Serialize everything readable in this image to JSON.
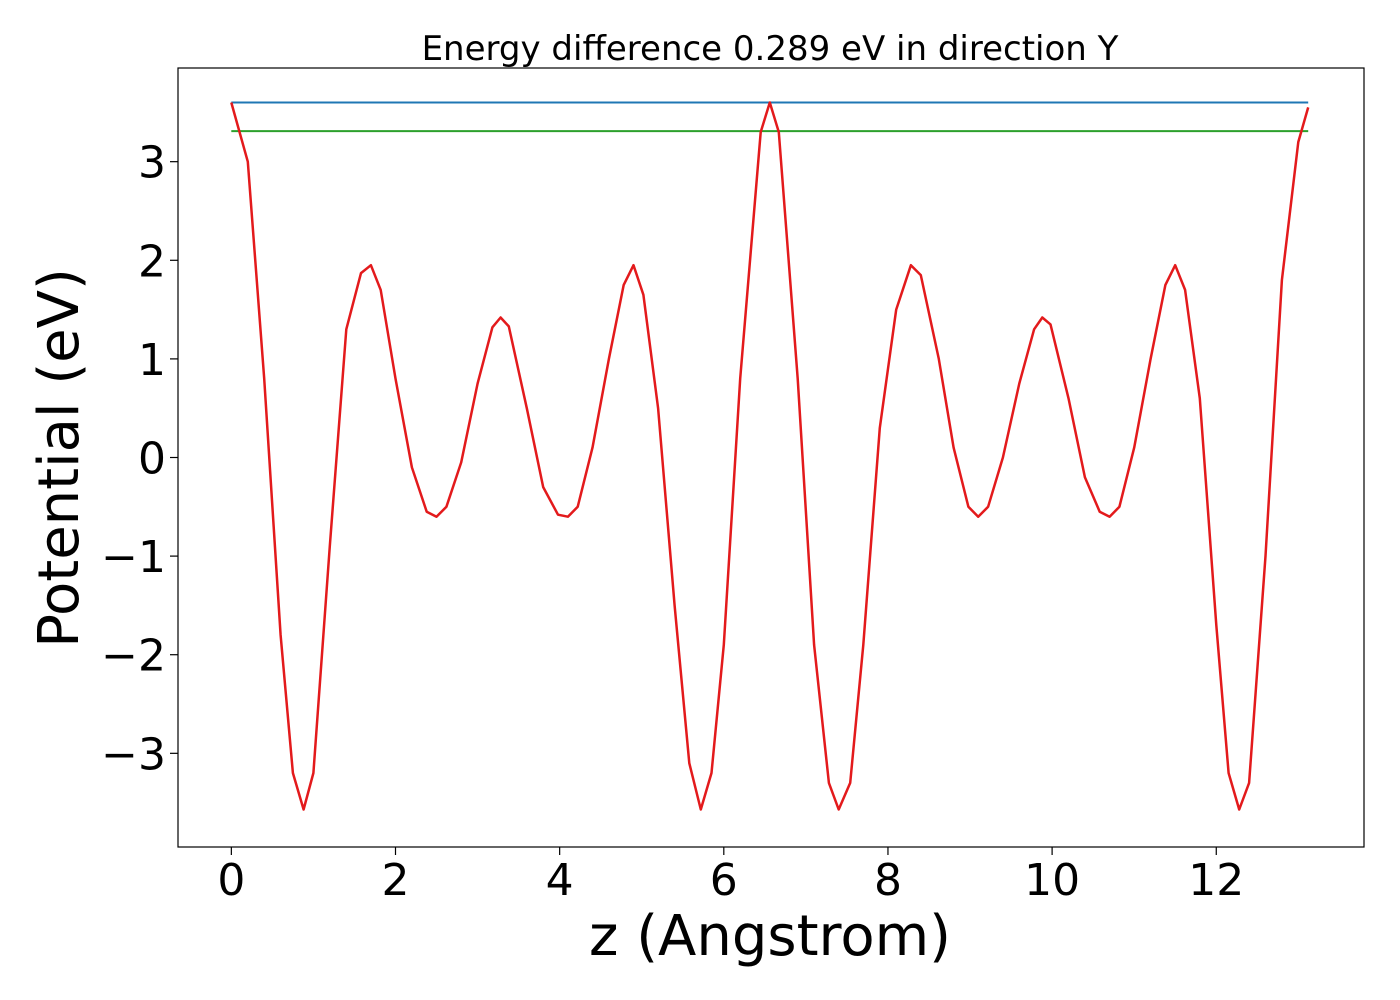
{
  "chart_data": {
    "type": "line",
    "title": "Energy difference 0.289 eV in direction Y",
    "xlabel": "z (Angstrom)",
    "ylabel": "Potential (eV)",
    "xlim": [
      -0.65,
      13.8
    ],
    "ylim": [
      -3.95,
      3.95
    ],
    "xticks": [
      0,
      2,
      4,
      6,
      8,
      10,
      12
    ],
    "xtick_labels": [
      "0",
      "2",
      "4",
      "6",
      "8",
      "10",
      "12"
    ],
    "yticks": [
      -3,
      -2,
      -1,
      0,
      1,
      2,
      3
    ],
    "ytick_labels": [
      "−3",
      "−2",
      "−1",
      "0",
      "1",
      "2",
      "3"
    ],
    "grid": false,
    "series": [
      {
        "color": "#1f77b4",
        "x": [
          0,
          13.12
        ],
        "y": [
          3.6,
          3.6
        ]
      },
      {
        "color": "#2ca02c",
        "x": [
          0,
          13.12
        ],
        "y": [
          3.31,
          3.31
        ]
      },
      {
        "color": "#e31a1c",
        "x": [
          0.0,
          0.2,
          0.4,
          0.6,
          0.75,
          0.88,
          1.0,
          1.2,
          1.4,
          1.58,
          1.7,
          1.82,
          2.0,
          2.2,
          2.38,
          2.5,
          2.62,
          2.8,
          3.0,
          3.18,
          3.28,
          3.38,
          3.6,
          3.8,
          3.98,
          4.1,
          4.22,
          4.4,
          4.6,
          4.78,
          4.9,
          5.02,
          5.2,
          5.4,
          5.58,
          5.72,
          5.85,
          6.0,
          6.2,
          6.45,
          6.56,
          6.67,
          6.9,
          7.1,
          7.28,
          7.4,
          7.54,
          7.7,
          7.9,
          8.1,
          8.28,
          8.4,
          8.62,
          8.8,
          8.98,
          9.1,
          9.22,
          9.4,
          9.6,
          9.78,
          9.88,
          9.98,
          10.2,
          10.4,
          10.58,
          10.7,
          10.82,
          11.0,
          11.2,
          11.38,
          11.5,
          11.62,
          11.8,
          12.0,
          12.15,
          12.28,
          12.4,
          12.6,
          12.8,
          13.0,
          13.12
        ],
        "y": [
          3.6,
          3.0,
          0.8,
          -1.8,
          -3.2,
          -3.57,
          -3.2,
          -0.9,
          1.3,
          1.87,
          1.95,
          1.7,
          0.8,
          -0.1,
          -0.55,
          -0.6,
          -0.5,
          -0.05,
          0.75,
          1.32,
          1.42,
          1.33,
          0.5,
          -0.3,
          -0.58,
          -0.6,
          -0.5,
          0.1,
          1.0,
          1.75,
          1.95,
          1.65,
          0.5,
          -1.5,
          -3.1,
          -3.57,
          -3.2,
          -1.9,
          0.8,
          3.3,
          3.6,
          3.3,
          0.8,
          -1.9,
          -3.3,
          -3.57,
          -3.3,
          -1.9,
          0.3,
          1.5,
          1.95,
          1.85,
          1.0,
          0.1,
          -0.5,
          -0.6,
          -0.5,
          0.0,
          0.75,
          1.3,
          1.42,
          1.35,
          0.6,
          -0.2,
          -0.55,
          -0.6,
          -0.5,
          0.1,
          1.0,
          1.75,
          1.95,
          1.7,
          0.6,
          -1.7,
          -3.2,
          -3.57,
          -3.3,
          -1.0,
          1.8,
          3.2,
          3.55
        ]
      }
    ]
  }
}
